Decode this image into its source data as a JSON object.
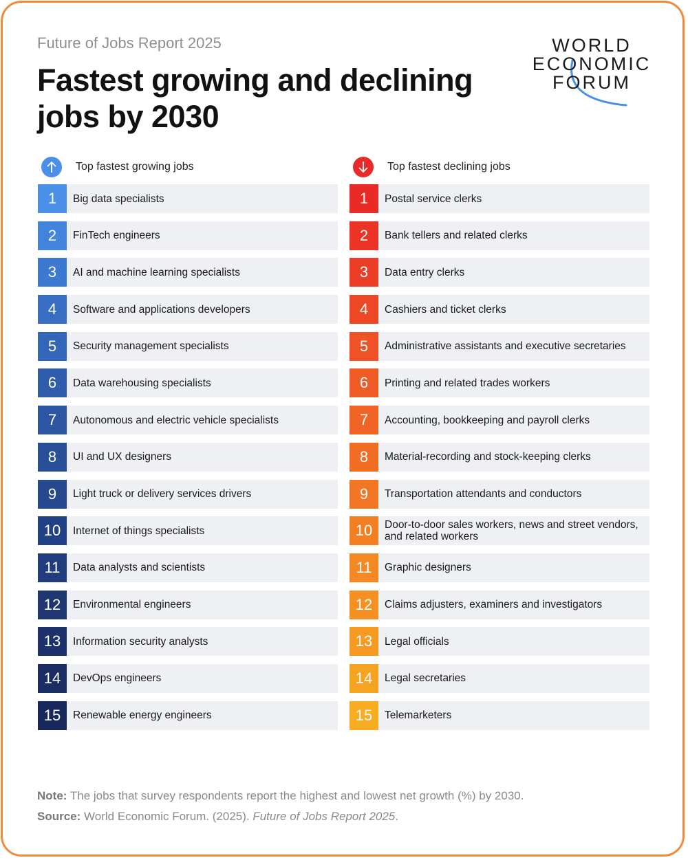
{
  "header": {
    "subtitle": "Future of Jobs Report 2025",
    "title_line1": "Fastest growing and declining",
    "title_line2": "jobs by 2030"
  },
  "logo": {
    "line1": "WORLD",
    "line2": "ECONOMIC",
    "line3": "FORUM"
  },
  "growing": {
    "heading": "Top fastest growing jobs",
    "icon": "arrow-up-icon",
    "items": [
      {
        "rank": "1",
        "job": "Big data specialists",
        "color": "#4a8fe8"
      },
      {
        "rank": "2",
        "job": "FinTech engineers",
        "color": "#4284dc"
      },
      {
        "rank": "3",
        "job": "AI and machine learning specialists",
        "color": "#3c79d0"
      },
      {
        "rank": "4",
        "job": "Software and applications developers",
        "color": "#376ec4"
      },
      {
        "rank": "5",
        "job": "Security management specialists",
        "color": "#3365b8"
      },
      {
        "rank": "6",
        "job": "Data warehousing specialists",
        "color": "#2f5dac"
      },
      {
        "rank": "7",
        "job": "Autonomous and electric vehicle specialists",
        "color": "#2c56a2"
      },
      {
        "rank": "8",
        "job": "UI and UX designers",
        "color": "#294f98"
      },
      {
        "rank": "9",
        "job": "Light truck or delivery services drivers",
        "color": "#26488e"
      },
      {
        "rank": "10",
        "job": "Internet of things specialists",
        "color": "#234285"
      },
      {
        "rank": "11",
        "job": "Data analysts and scientists",
        "color": "#213c7c"
      },
      {
        "rank": "12",
        "job": "Environmental engineers",
        "color": "#1f3673"
      },
      {
        "rank": "13",
        "job": "Information security analysts",
        "color": "#1d316b"
      },
      {
        "rank": "14",
        "job": "DevOps engineers",
        "color": "#1b2c63"
      },
      {
        "rank": "15",
        "job": "Renewable energy engineers",
        "color": "#19285c"
      }
    ]
  },
  "declining": {
    "heading": "Top fastest declining jobs",
    "icon": "arrow-down-icon",
    "items": [
      {
        "rank": "1",
        "job": "Postal service clerks",
        "color": "#ea2a26"
      },
      {
        "rank": "2",
        "job": "Bank tellers and related clerks",
        "color": "#eb3426"
      },
      {
        "rank": "3",
        "job": "Data entry clerks",
        "color": "#ec3e26"
      },
      {
        "rank": "4",
        "job": "Cashiers and ticket clerks",
        "color": "#ed4826"
      },
      {
        "rank": "5",
        "job": "Administrative assistants and executive secretaries",
        "color": "#ee5226"
      },
      {
        "rank": "6",
        "job": "Printing and related trades workers",
        "color": "#ef5b25"
      },
      {
        "rank": "7",
        "job": "Accounting, bookkeeping and payroll clerks",
        "color": "#f06425"
      },
      {
        "rank": "8",
        "job": "Material-recording and stock-keeping clerks",
        "color": "#f16d24"
      },
      {
        "rank": "9",
        "job": "Transportation attendants and conductors",
        "color": "#f27624"
      },
      {
        "rank": "10",
        "job": "Door-to-door sales workers, news and street vendors, and related workers",
        "color": "#f37f23"
      },
      {
        "rank": "11",
        "job": "Graphic designers",
        "color": "#f48823"
      },
      {
        "rank": "12",
        "job": "Claims adjusters, examiners and investigators",
        "color": "#f59122"
      },
      {
        "rank": "13",
        "job": "Legal officials",
        "color": "#f69a22"
      },
      {
        "rank": "14",
        "job": "Legal secretaries",
        "color": "#f7a322"
      },
      {
        "rank": "15",
        "job": "Telemarketers",
        "color": "#f8ac21"
      }
    ]
  },
  "footer": {
    "note_label": "Note:",
    "note_text": " The jobs that survey respondents report the highest and lowest net growth (%) by 2030.",
    "source_label": "Source:",
    "source_text": " World Economic Forum. (2025). ",
    "source_title": "Future of Jobs Report 2025",
    "source_end": "."
  },
  "colors": {
    "border": "#f08a3a",
    "up_icon": "#4a8fe8",
    "down_icon": "#ea2a26",
    "row_bg": "#eef0f3"
  }
}
